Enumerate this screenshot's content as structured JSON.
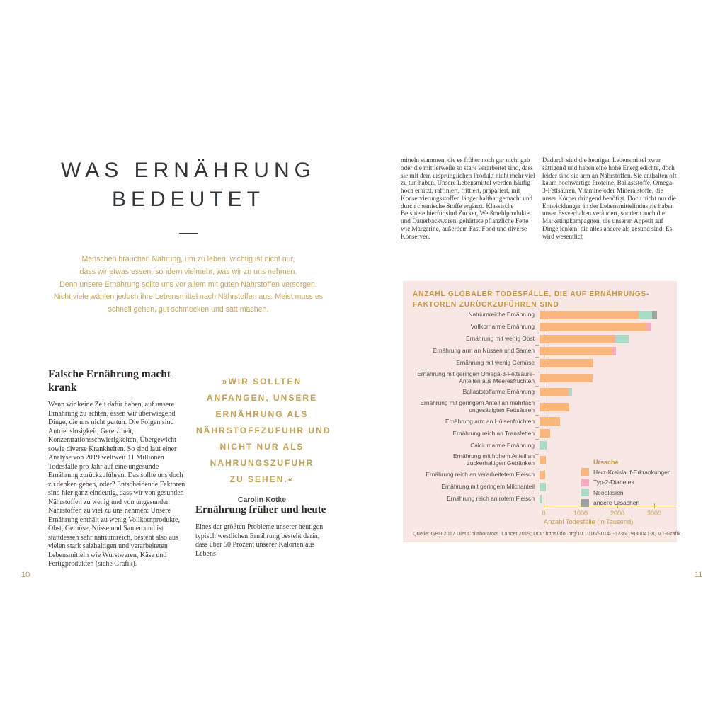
{
  "left_page": {
    "page_number": "10",
    "title_line1": "WAS ERNÄHRUNG",
    "title_line2": "BEDEUTET",
    "intro_lines": [
      "Menschen brauchen Nahrung, um zu leben. wichtig ist nicht nur,",
      "dass wir etwas essen, sondern vielmehr, was wir zu uns nehmen.",
      "Denn unsere Ernährung sollte uns vor allem mit guten Nährstoffen versorgen.",
      "Nicht viele wählen jedoch ihre Lebensmittel nach Nährstoffen aus. Meist muss es",
      "schnell gehen, gut schmecken und satt machen."
    ],
    "article1": {
      "heading": "Falsche Ernährung macht krank",
      "body": "Wenn wir keine Zeit dafür haben, auf unsere Ernährung zu achten, essen wir überwiegend Dinge, die uns nicht guttun. Die Folgen sind Antriebslosigkeit, Gereiztheit, Konzentrationsschwierigkeiten, Übergewicht sowie diverse Krankheiten. So sind laut einer Analyse von 2019 weltweit 11 Millionen Todesfälle pro Jahr auf eine ungesunde Ernährung zurückzuführen. Das sollte uns doch zu denken geben, oder? Entscheidende Faktoren sind hier ganz eindeutig, dass wir von gesunden Nährstoffen zu wenig und von ungesunden Nährstoffen zu viel zu uns nehmen: Unsere Ernährung enthält zu wenig Vollkornprodukte, Obst, Gemüse, Nüsse und Samen und ist stattdessen sehr natriumreich, besteht also aus vielen stark salzhaltigen und verarbeiteten Lebensmitteln wie Wurstwaren, Käse und Fertigprodukten (siehe Grafik)."
    },
    "quote": {
      "lines": [
        "»WIR SOLLTEN",
        "ANFANGEN, UNSERE",
        "ERNÄHRUNG ALS",
        "NÄHRSTOFFZUFUHR UND",
        "NICHT NUR ALS",
        "NAHRUNGSZUFUHR",
        "ZU SEHEN.«"
      ],
      "author": "Carolin Kotke"
    },
    "article2": {
      "heading": "Ernährung früher und heute",
      "body": "Eines der größten Probleme unserer heutigen typisch westlichen Ernährung besteht darin, dass über 50 Prozent unserer Kalorien aus Lebens-"
    }
  },
  "right_page": {
    "page_number": "11",
    "column1": "mitteln stammen, die es früher noch gar nicht gab oder die mittlerweile so stark verarbeitet sind, dass sie mit dem ursprünglichen Produkt nicht mehr viel zu tun haben.  Unsere Lebensmittel werden häufig hoch erhitzt, raffiniert, frittiert, präpariert, mit Konservierungsstoffen länger haltbar gemacht und durch chemische Stoffe ergänzt. Klassische Beispiele hierfür sind Zucker, Weißmehlprodukte und Dauerbackwaren, gehärtete pflanzliche Fette wie Margarine, außerdem Fast Food und diverse Konserven.",
    "column2": "Dadurch sind die heutigen Lebensmittel zwar sättigend und haben eine hohe Energiedichte, doch leider sind sie arm an Nährstoffen. Sie enthalten oft kaum hochwertige Proteine, Ballaststoffe, Omega-3-Fettsäuren, Vitamine oder Mineralstoffe, die unser Körper dringend benötigt. Doch nicht nur die Entwicklungen in der Lebensmittelindustrie haben unser Essverhalten verändert, sondern auch die Marketingkampagnen, die unseren Appetit auf Dinge lenken, die alles andere als gesund sind. Es wird wesentlich"
  },
  "chart_data": {
    "type": "bar",
    "orientation": "horizontal",
    "stacked": true,
    "title": "ANZAHL GLOBALER TODESFÄLLE, DIE AUF ERNÄHRUNGS-FAKTOREN ZURÜCKZUFÜHREN SIND",
    "title_line1": "ANZAHL GLOBALER TODESFÄLLE, DIE AUF ERNÄHRUNGS-",
    "title_line2": "FAKTOREN ZURÜCKZUFÜHREN SIND",
    "xlabel": "Anzahl Todesfälle (in Tausend)",
    "xlim": [
      0,
      3500
    ],
    "xticks": [
      0,
      1000,
      2000,
      3000
    ],
    "grid": false,
    "legend_position": "inside-bottom-right",
    "legend_title": "Ursache",
    "series": [
      {
        "name": "Herz-Kreislauf-Erkrankungen",
        "color": "#f9b77e"
      },
      {
        "name": "Typ-2-Diabetes",
        "color": "#f6a9c0"
      },
      {
        "name": "Neoplasien",
        "color": "#a8dcc8"
      },
      {
        "name": "andere Ursachen",
        "color": "#9aa49f"
      }
    ],
    "rows": [
      {
        "label": "Natriumreiche Ernährung",
        "label_lines": [
          "Natriumreiche Ernährung"
        ],
        "values": [
          2700,
          0,
          360,
          130
        ]
      },
      {
        "label": "Vollkornarme Ernährung",
        "label_lines": [
          "Vollkornarme Ernährung"
        ],
        "values": [
          2900,
          140,
          0,
          0
        ]
      },
      {
        "label": "Ernährung mit wenig Obst",
        "label_lines": [
          "Ernährung mit wenig Obst"
        ],
        "values": [
          2020,
          40,
          360,
          0
        ]
      },
      {
        "label": "Ernährung arm an Nüssen und Samen",
        "label_lines": [
          "Ernährung arm an Nüssen und Samen"
        ],
        "values": [
          1990,
          80,
          0,
          0
        ]
      },
      {
        "label": "Ernährung mit wenig Gemüse",
        "label_lines": [
          "Ernährung mit wenig Gemüse"
        ],
        "values": [
          1460,
          0,
          0,
          0
        ]
      },
      {
        "label": "Ernährung mit geringen Omega-3-Fettsäure-Anteilen aus Meeresfrüchten",
        "label_lines": [
          "Ernährung mit geringen Omega-3-Fettsäure-",
          "Anteilen aus Meeresfrüchten"
        ],
        "values": [
          1440,
          0,
          0,
          0
        ]
      },
      {
        "label": "Ballaststoffarme Ernährung",
        "label_lines": [
          "Ballaststoffarme Ernährung"
        ],
        "values": [
          790,
          0,
          90,
          0
        ]
      },
      {
        "label": "Ernährung mit geringem Anteil an mehrfach ungesättigten Fettsäuren",
        "label_lines": [
          "Ernährung mit geringem Anteil an mehrfach",
          "ungesättigten Fettsäuren"
        ],
        "values": [
          800,
          0,
          0,
          0
        ]
      },
      {
        "label": "Ernährung arm an Hülsenfrüchten",
        "label_lines": [
          "Ernährung arm an Hülsenfrüchten"
        ],
        "values": [
          550,
          0,
          0,
          0
        ]
      },
      {
        "label": "Ernährung reich an Transfetten",
        "label_lines": [
          "Ernährung reich an Transfetten"
        ],
        "values": [
          280,
          0,
          0,
          0
        ]
      },
      {
        "label": "Calciumarme Ernährung",
        "label_lines": [
          "Calciumarme Ernährung"
        ],
        "values": [
          0,
          0,
          200,
          0
        ]
      },
      {
        "label": "Ernährung mit hohem Anteil an zuckerhaltigen Getränken",
        "label_lines": [
          "Ernährung mit hohem Anteil an",
          "zuckerhaltigen Getränken"
        ],
        "values": [
          170,
          0,
          0,
          0
        ]
      },
      {
        "label": "Ernährung reich an verarbeitetem Fleisch",
        "label_lines": [
          "Ernährung reich an verarbeitetem Fleisch"
        ],
        "values": [
          150,
          0,
          0,
          0
        ]
      },
      {
        "label": "Ernährung mit geringem Milchanteil",
        "label_lines": [
          "Ernährung mit geringem Milchanteil"
        ],
        "values": [
          0,
          0,
          180,
          0
        ]
      },
      {
        "label": "Ernährung reich an rotem Fleisch",
        "label_lines": [
          "Ernährung reich an rotem Fleisch"
        ],
        "values": [
          0,
          0,
          50,
          0
        ]
      }
    ],
    "source": "Quelle: GBD 2017 Diet Collaborators. Lancet 2019; DOI: https//doi.org/10.1016/S0140-6736(19)30041-8, MT-Grafik",
    "panel_background": "#f8e7e2",
    "accent_gold": "#c6953f"
  }
}
